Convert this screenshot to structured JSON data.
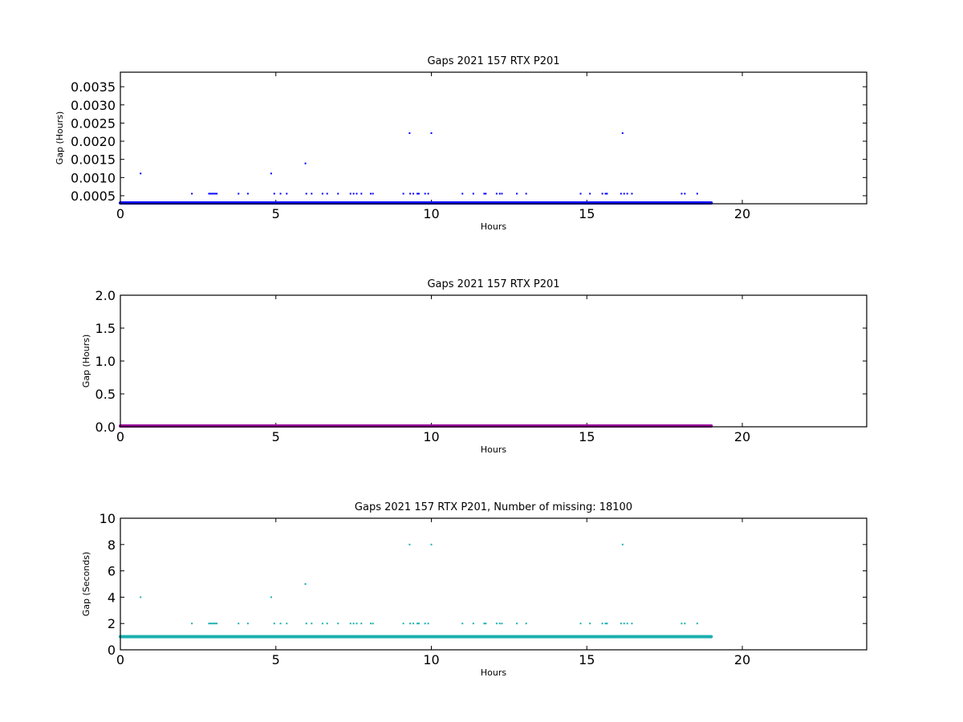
{
  "chart_data": [
    {
      "type": "scatter",
      "title": "Gaps 2021 157 RTX  P201",
      "xlabel": "Hours",
      "ylabel": "Gap (Hours)",
      "xlim": [
        0,
        24
      ],
      "ylim": [
        0.000278,
        0.0039
      ],
      "xticks": [
        "0",
        "5",
        "10",
        "15",
        "20"
      ],
      "yticks": [
        "0.0005",
        "0.0010",
        "0.0015",
        "0.0020",
        "0.0025",
        "0.0030",
        "0.0035"
      ],
      "color": "#0000ff",
      "baseline": {
        "x_start": 0,
        "x_end": 19.0,
        "y": 0.000278
      },
      "points": [
        {
          "x": 0.65,
          "y": 0.001111
        },
        {
          "x": 2.3,
          "y": 0.000556
        },
        {
          "x": 2.85,
          "y": 0.000556
        },
        {
          "x": 2.9,
          "y": 0.000556
        },
        {
          "x": 2.95,
          "y": 0.000556
        },
        {
          "x": 3.0,
          "y": 0.000556
        },
        {
          "x": 3.05,
          "y": 0.000556
        },
        {
          "x": 3.1,
          "y": 0.000556
        },
        {
          "x": 3.8,
          "y": 0.000556
        },
        {
          "x": 4.1,
          "y": 0.000556
        },
        {
          "x": 4.85,
          "y": 0.001111
        },
        {
          "x": 4.95,
          "y": 0.000556
        },
        {
          "x": 5.15,
          "y": 0.000556
        },
        {
          "x": 5.35,
          "y": 0.000556
        },
        {
          "x": 5.95,
          "y": 0.001389
        },
        {
          "x": 5.98,
          "y": 0.000556
        },
        {
          "x": 6.15,
          "y": 0.000556
        },
        {
          "x": 6.5,
          "y": 0.000556
        },
        {
          "x": 6.65,
          "y": 0.000556
        },
        {
          "x": 7.0,
          "y": 0.000556
        },
        {
          "x": 7.4,
          "y": 0.000556
        },
        {
          "x": 7.5,
          "y": 0.000556
        },
        {
          "x": 7.6,
          "y": 0.000556
        },
        {
          "x": 7.75,
          "y": 0.000556
        },
        {
          "x": 8.05,
          "y": 0.000556
        },
        {
          "x": 8.12,
          "y": 0.000556
        },
        {
          "x": 9.1,
          "y": 0.000556
        },
        {
          "x": 9.3,
          "y": 0.002222
        },
        {
          "x": 9.32,
          "y": 0.000556
        },
        {
          "x": 9.42,
          "y": 0.000556
        },
        {
          "x": 9.55,
          "y": 0.000556
        },
        {
          "x": 9.6,
          "y": 0.000556
        },
        {
          "x": 9.8,
          "y": 0.000556
        },
        {
          "x": 9.9,
          "y": 0.000556
        },
        {
          "x": 10.0,
          "y": 0.002222
        },
        {
          "x": 11.0,
          "y": 0.000556
        },
        {
          "x": 11.35,
          "y": 0.000556
        },
        {
          "x": 11.7,
          "y": 0.000556
        },
        {
          "x": 11.75,
          "y": 0.000556
        },
        {
          "x": 12.1,
          "y": 0.000556
        },
        {
          "x": 12.2,
          "y": 0.000556
        },
        {
          "x": 12.27,
          "y": 0.000556
        },
        {
          "x": 12.75,
          "y": 0.000556
        },
        {
          "x": 13.05,
          "y": 0.000556
        },
        {
          "x": 14.8,
          "y": 0.000556
        },
        {
          "x": 15.1,
          "y": 0.000556
        },
        {
          "x": 15.5,
          "y": 0.000556
        },
        {
          "x": 15.6,
          "y": 0.000556
        },
        {
          "x": 15.65,
          "y": 0.000556
        },
        {
          "x": 16.1,
          "y": 0.000556
        },
        {
          "x": 16.15,
          "y": 0.002222
        },
        {
          "x": 16.2,
          "y": 0.000556
        },
        {
          "x": 16.3,
          "y": 0.000556
        },
        {
          "x": 16.45,
          "y": 0.000556
        },
        {
          "x": 18.05,
          "y": 0.000556
        },
        {
          "x": 18.15,
          "y": 0.000556
        },
        {
          "x": 18.55,
          "y": 0.000556
        }
      ]
    },
    {
      "type": "scatter",
      "title": "Gaps 2021 157 RTX  P201",
      "xlabel": "Hours",
      "ylabel": "Gap (Hours)",
      "xlim": [
        0,
        24
      ],
      "ylim": [
        0,
        2
      ],
      "xticks": [
        "0",
        "5",
        "10",
        "15",
        "20"
      ],
      "yticks": [
        "0.0",
        "0.5",
        "1.0",
        "1.5",
        "2.0"
      ],
      "color": "#990099",
      "baseline": {
        "x_start": 0,
        "x_end": 19.0,
        "y": 0.0
      },
      "points": []
    },
    {
      "type": "scatter",
      "title": "Gaps 2021 157 RTX  P201, Number of missing: 18100",
      "xlabel": "Hours",
      "ylabel": "Gap (Seconds)",
      "xlim": [
        0,
        24
      ],
      "ylim": [
        0,
        10
      ],
      "xticks": [
        "0",
        "5",
        "10",
        "15",
        "20"
      ],
      "yticks": [
        "0",
        "2",
        "4",
        "6",
        "8",
        "10"
      ],
      "color": "#1ab0b0",
      "baseline": {
        "x_start": 0,
        "x_end": 19.0,
        "y": 1
      },
      "points": [
        {
          "x": 0.65,
          "y": 4
        },
        {
          "x": 2.3,
          "y": 2
        },
        {
          "x": 2.85,
          "y": 2
        },
        {
          "x": 2.9,
          "y": 2
        },
        {
          "x": 2.95,
          "y": 2
        },
        {
          "x": 3.0,
          "y": 2
        },
        {
          "x": 3.05,
          "y": 2
        },
        {
          "x": 3.1,
          "y": 2
        },
        {
          "x": 3.8,
          "y": 2
        },
        {
          "x": 4.1,
          "y": 2
        },
        {
          "x": 4.85,
          "y": 4
        },
        {
          "x": 4.95,
          "y": 2
        },
        {
          "x": 5.15,
          "y": 2
        },
        {
          "x": 5.35,
          "y": 2
        },
        {
          "x": 5.95,
          "y": 5
        },
        {
          "x": 5.98,
          "y": 2
        },
        {
          "x": 6.15,
          "y": 2
        },
        {
          "x": 6.5,
          "y": 2
        },
        {
          "x": 6.65,
          "y": 2
        },
        {
          "x": 7.0,
          "y": 2
        },
        {
          "x": 7.4,
          "y": 2
        },
        {
          "x": 7.5,
          "y": 2
        },
        {
          "x": 7.6,
          "y": 2
        },
        {
          "x": 7.75,
          "y": 2
        },
        {
          "x": 8.05,
          "y": 2
        },
        {
          "x": 8.12,
          "y": 2
        },
        {
          "x": 9.1,
          "y": 2
        },
        {
          "x": 9.3,
          "y": 8
        },
        {
          "x": 9.32,
          "y": 2
        },
        {
          "x": 9.42,
          "y": 2
        },
        {
          "x": 9.55,
          "y": 2
        },
        {
          "x": 9.6,
          "y": 2
        },
        {
          "x": 9.8,
          "y": 2
        },
        {
          "x": 9.9,
          "y": 2
        },
        {
          "x": 10.0,
          "y": 8
        },
        {
          "x": 11.0,
          "y": 2
        },
        {
          "x": 11.35,
          "y": 2
        },
        {
          "x": 11.7,
          "y": 2
        },
        {
          "x": 11.75,
          "y": 2
        },
        {
          "x": 12.1,
          "y": 2
        },
        {
          "x": 12.2,
          "y": 2
        },
        {
          "x": 12.27,
          "y": 2
        },
        {
          "x": 12.75,
          "y": 2
        },
        {
          "x": 13.05,
          "y": 2
        },
        {
          "x": 14.8,
          "y": 2
        },
        {
          "x": 15.1,
          "y": 2
        },
        {
          "x": 15.5,
          "y": 2
        },
        {
          "x": 15.6,
          "y": 2
        },
        {
          "x": 15.65,
          "y": 2
        },
        {
          "x": 16.1,
          "y": 2
        },
        {
          "x": 16.15,
          "y": 8
        },
        {
          "x": 16.2,
          "y": 2
        },
        {
          "x": 16.3,
          "y": 2
        },
        {
          "x": 16.45,
          "y": 2
        },
        {
          "x": 18.05,
          "y": 2
        },
        {
          "x": 18.15,
          "y": 2
        },
        {
          "x": 18.55,
          "y": 2
        }
      ]
    }
  ]
}
